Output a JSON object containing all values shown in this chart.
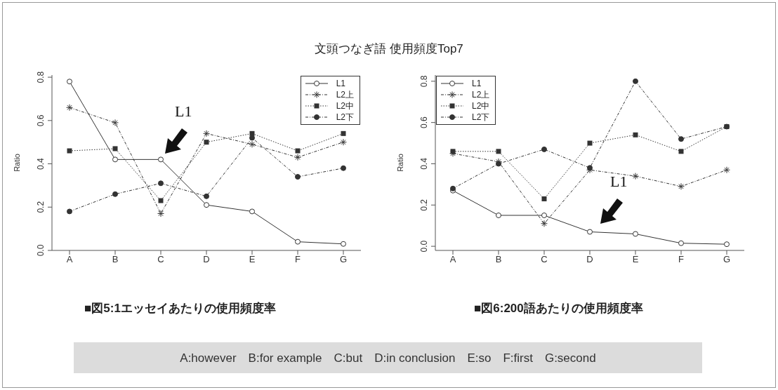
{
  "chart_data": [
    {
      "type": "line",
      "title": "文頭つなぎ語 使用頻度Top7",
      "ylabel": "Ratio",
      "categories": [
        "A",
        "B",
        "C",
        "D",
        "E",
        "F",
        "G"
      ],
      "series": [
        {
          "name": "L1",
          "color": "#333333",
          "marker": "circle_open",
          "line_style": "solid",
          "values": [
            0.78,
            0.42,
            0.42,
            0.21,
            0.18,
            0.04,
            0.03
          ]
        },
        {
          "name": "L2上",
          "color": "#333333",
          "marker": "cross",
          "line_style": "dashed",
          "values": [
            0.66,
            0.59,
            0.17,
            0.54,
            0.49,
            0.43,
            0.5
          ]
        },
        {
          "name": "L2中",
          "color": "#333333",
          "marker": "square",
          "line_style": "dotted",
          "values": [
            0.46,
            0.47,
            0.23,
            0.5,
            0.54,
            0.46,
            0.54
          ]
        },
        {
          "name": "L2下",
          "color": "#333333",
          "marker": "circle",
          "line_style": "dashed",
          "values": [
            0.18,
            0.26,
            0.31,
            0.25,
            0.52,
            0.34,
            0.38
          ]
        }
      ],
      "ylim": [
        0,
        0.81
      ],
      "yticks": [
        {
          "value": 0,
          "label": "0.0"
        },
        0.2,
        0.4,
        0.6,
        0.8
      ],
      "grid": false,
      "legend": "top right",
      "annotations": [
        {
          "text": "L1",
          "x": "C",
          "y": 0.42
        },
        "■図5:1エッセイあたりの使用頻度率",
        "A:however　B:for example　C:but　D:in conclusion　E:so　F:first　G:second"
      ]
    },
    {
      "type": "line",
      "ylabel": "Ratio",
      "categories": [
        "A",
        "B",
        "C",
        "D",
        "E",
        "F",
        "G"
      ],
      "series": [
        {
          "name": "L1",
          "color": "#333333",
          "marker": "circle_open",
          "line_style": "solid",
          "values": [
            0.27,
            0.15,
            0.15,
            0.07,
            0.06,
            0.015,
            0.01
          ]
        },
        {
          "name": "L2上",
          "color": "#333333",
          "marker": "cross",
          "line_style": "dashed",
          "values": [
            0.45,
            0.41,
            0.11,
            0.37,
            0.34,
            0.29,
            0.37
          ]
        },
        {
          "name": "L2中",
          "color": "#333333",
          "marker": "square",
          "line_style": "dotted",
          "values": [
            0.46,
            0.46,
            0.23,
            0.5,
            0.54,
            0.46,
            0.58
          ]
        },
        {
          "name": "L2下",
          "color": "#333333",
          "marker": "circle",
          "line_style": "dashed",
          "values": [
            0.28,
            0.4,
            0.47,
            0.38,
            0.8,
            0.52,
            0.58
          ]
        }
      ],
      "ylim": [
        -0.02,
        0.83
      ],
      "yticks": [
        {
          "value": 0,
          "label": "0.0"
        },
        0.2,
        0.4,
        0.6,
        0.8
      ],
      "grid": false,
      "legend": "top left",
      "annotations": [
        "L1",
        "■図6:200語あたりの使用頻度率"
      ]
    }
  ]
}
